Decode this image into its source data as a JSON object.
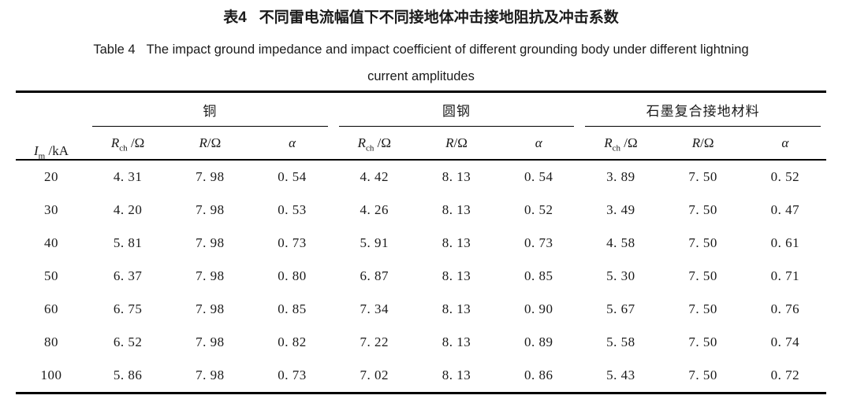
{
  "caption": {
    "zh_prefix": "表4",
    "zh_text": "不同雷电流幅值下不同接地体冲击接地阻抗及冲击系数",
    "en_prefix": "Table 4",
    "en_line1": "The impact ground impedance and impact coefficient of different grounding body under different lightning",
    "en_line2": "current amplitudes"
  },
  "table": {
    "row_header": {
      "base": "I",
      "sub": "m",
      "rest": " /kA"
    },
    "groups": [
      {
        "label": "铜"
      },
      {
        "label": "圆钢"
      },
      {
        "label": "石墨复合接地材料"
      }
    ],
    "subcols": [
      {
        "base": "R",
        "sub": "ch",
        "rest": " /Ω"
      },
      {
        "base": "R",
        "sub": "",
        "rest": "/Ω"
      },
      {
        "base": "α",
        "sub": "",
        "rest": ""
      }
    ],
    "rows": [
      {
        "cells": [
          "20",
          "4. 31",
          "7. 98",
          "0. 54",
          "4. 42",
          "8. 13",
          "0. 54",
          "3. 89",
          "7. 50",
          "0. 52"
        ]
      },
      {
        "cells": [
          "30",
          "4. 20",
          "7. 98",
          "0. 53",
          "4. 26",
          "8. 13",
          "0. 52",
          "3. 49",
          "7. 50",
          "0. 47"
        ]
      },
      {
        "cells": [
          "40",
          "5. 81",
          "7. 98",
          "0. 73",
          "5. 91",
          "8. 13",
          "0. 73",
          "4. 58",
          "7. 50",
          "0. 61"
        ]
      },
      {
        "cells": [
          "50",
          "6. 37",
          "7. 98",
          "0. 80",
          "6. 87",
          "8. 13",
          "0. 85",
          "5. 30",
          "7. 50",
          "0. 71"
        ]
      },
      {
        "cells": [
          "60",
          "6. 75",
          "7. 98",
          "0. 85",
          "7. 34",
          "8. 13",
          "0. 90",
          "5. 67",
          "7. 50",
          "0. 76"
        ]
      },
      {
        "cells": [
          "80",
          "6. 52",
          "7. 98",
          "0. 82",
          "7. 22",
          "8. 13",
          "0. 89",
          "5. 58",
          "7. 50",
          "0. 74"
        ]
      },
      {
        "cells": [
          "100",
          "5. 86",
          "7. 98",
          "0. 73",
          "7. 02",
          "8. 13",
          "0. 86",
          "5. 43",
          "7. 50",
          "0. 72"
        ]
      }
    ]
  },
  "colors": {
    "text": "#1a1a1a",
    "rule": "#000000",
    "background": "#ffffff"
  },
  "chart_data": {
    "type": "table",
    "title": "表4 不同雷电流幅值下不同接地体冲击接地阻抗及冲击系数 / Table 4 The impact ground impedance and impact coefficient of different grounding body under different lightning current amplitudes",
    "xlabel": "Im/kA",
    "categories": [
      20,
      30,
      40,
      50,
      60,
      80,
      100
    ],
    "series": [
      {
        "name": "铜 Rch/Ω",
        "values": [
          4.31,
          4.2,
          5.81,
          6.37,
          6.75,
          6.52,
          5.86
        ]
      },
      {
        "name": "铜 R/Ω",
        "values": [
          7.98,
          7.98,
          7.98,
          7.98,
          7.98,
          7.98,
          7.98
        ]
      },
      {
        "name": "铜 α",
        "values": [
          0.54,
          0.53,
          0.73,
          0.8,
          0.85,
          0.82,
          0.73
        ]
      },
      {
        "name": "圆钢 Rch/Ω",
        "values": [
          4.42,
          4.26,
          5.91,
          6.87,
          7.34,
          7.22,
          7.02
        ]
      },
      {
        "name": "圆钢 R/Ω",
        "values": [
          8.13,
          8.13,
          8.13,
          8.13,
          8.13,
          8.13,
          8.13
        ]
      },
      {
        "name": "圆钢 α",
        "values": [
          0.54,
          0.52,
          0.73,
          0.85,
          0.9,
          0.89,
          0.86
        ]
      },
      {
        "name": "石墨复合接地材料 Rch/Ω",
        "values": [
          3.89,
          3.49,
          4.58,
          5.3,
          5.67,
          5.58,
          5.43
        ]
      },
      {
        "name": "石墨复合接地材料 R/Ω",
        "values": [
          7.5,
          7.5,
          7.5,
          7.5,
          7.5,
          7.5,
          7.5
        ]
      },
      {
        "name": "石墨复合接地材料 α",
        "values": [
          0.52,
          0.47,
          0.61,
          0.71,
          0.76,
          0.74,
          0.72
        ]
      }
    ]
  }
}
